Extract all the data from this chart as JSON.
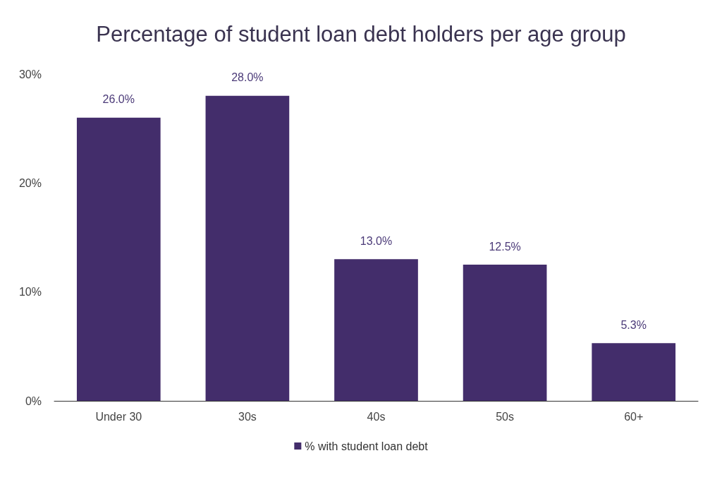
{
  "chart_data": {
    "type": "bar",
    "title": "Percentage of student loan debt holders per age group",
    "categories": [
      "Under 30",
      "30s",
      "40s",
      "50s",
      "60+"
    ],
    "series": [
      {
        "name": "% with student loan debt",
        "color": "#432d6b",
        "values": [
          26.0,
          28.0,
          13.0,
          12.5,
          5.3
        ],
        "value_labels": [
          "26.0%",
          "28.0%",
          "13.0%",
          "12.5%",
          "5.3%"
        ]
      }
    ],
    "ylim": [
      0,
      30
    ],
    "yticks": [
      {
        "value": 0,
        "label": "0%"
      },
      {
        "value": 10,
        "label": "10%"
      },
      {
        "value": 20,
        "label": "20%"
      },
      {
        "value": 30,
        "label": "30%"
      }
    ],
    "grid": false,
    "legend": "bottom"
  }
}
